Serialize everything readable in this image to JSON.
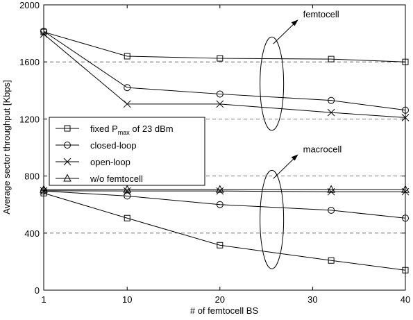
{
  "chart_data": {
    "type": "line",
    "xlabel": "# of femtocell BS",
    "ylabel": "Average sector throughput [Kbps]",
    "xlim": [
      1,
      40
    ],
    "ylim": [
      0,
      2000
    ],
    "x_ticks": [
      "1",
      "10",
      "20",
      "30",
      "40"
    ],
    "y_ticks": [
      "0",
      "400",
      "800",
      "1200",
      "1600",
      "2000"
    ],
    "dashed_gridlines_y": [
      400,
      800,
      1200,
      1600
    ],
    "legend_placement": "left-middle",
    "x": [
      1,
      10,
      20,
      32,
      40
    ],
    "legend": [
      {
        "marker": "square",
        "label_main": "fixed P",
        "label_sub": "max",
        "label_tail": " of 23 dBm"
      },
      {
        "marker": "circle",
        "label_main": "closed-loop"
      },
      {
        "marker": "x",
        "label_main": "open-loop"
      },
      {
        "marker": "triangle",
        "label_main": "w/o femtocell"
      }
    ],
    "series": [
      {
        "group": "femtocell",
        "marker": "square",
        "values": [
          1810,
          1640,
          1625,
          1620,
          1600
        ]
      },
      {
        "group": "femtocell",
        "marker": "circle",
        "values": [
          1815,
          1420,
          1375,
          1330,
          1262
        ]
      },
      {
        "group": "femtocell",
        "marker": "x",
        "values": [
          1795,
          1305,
          1305,
          1245,
          1210
        ]
      },
      {
        "group": "macrocell",
        "marker": "square",
        "values": [
          680,
          505,
          315,
          208,
          140
        ]
      },
      {
        "group": "macrocell",
        "marker": "circle",
        "values": [
          695,
          660,
          600,
          560,
          505
        ]
      },
      {
        "group": "macrocell",
        "marker": "x",
        "values": [
          697,
          695,
          695,
          690,
          690
        ]
      },
      {
        "group": "macrocell",
        "marker": "triangle",
        "values": [
          705,
          705,
          705,
          705,
          705
        ]
      }
    ],
    "annotations": [
      {
        "text": "femtocell",
        "target_group": "femtocell"
      },
      {
        "text": "macrocell",
        "target_group": "macrocell"
      }
    ]
  }
}
